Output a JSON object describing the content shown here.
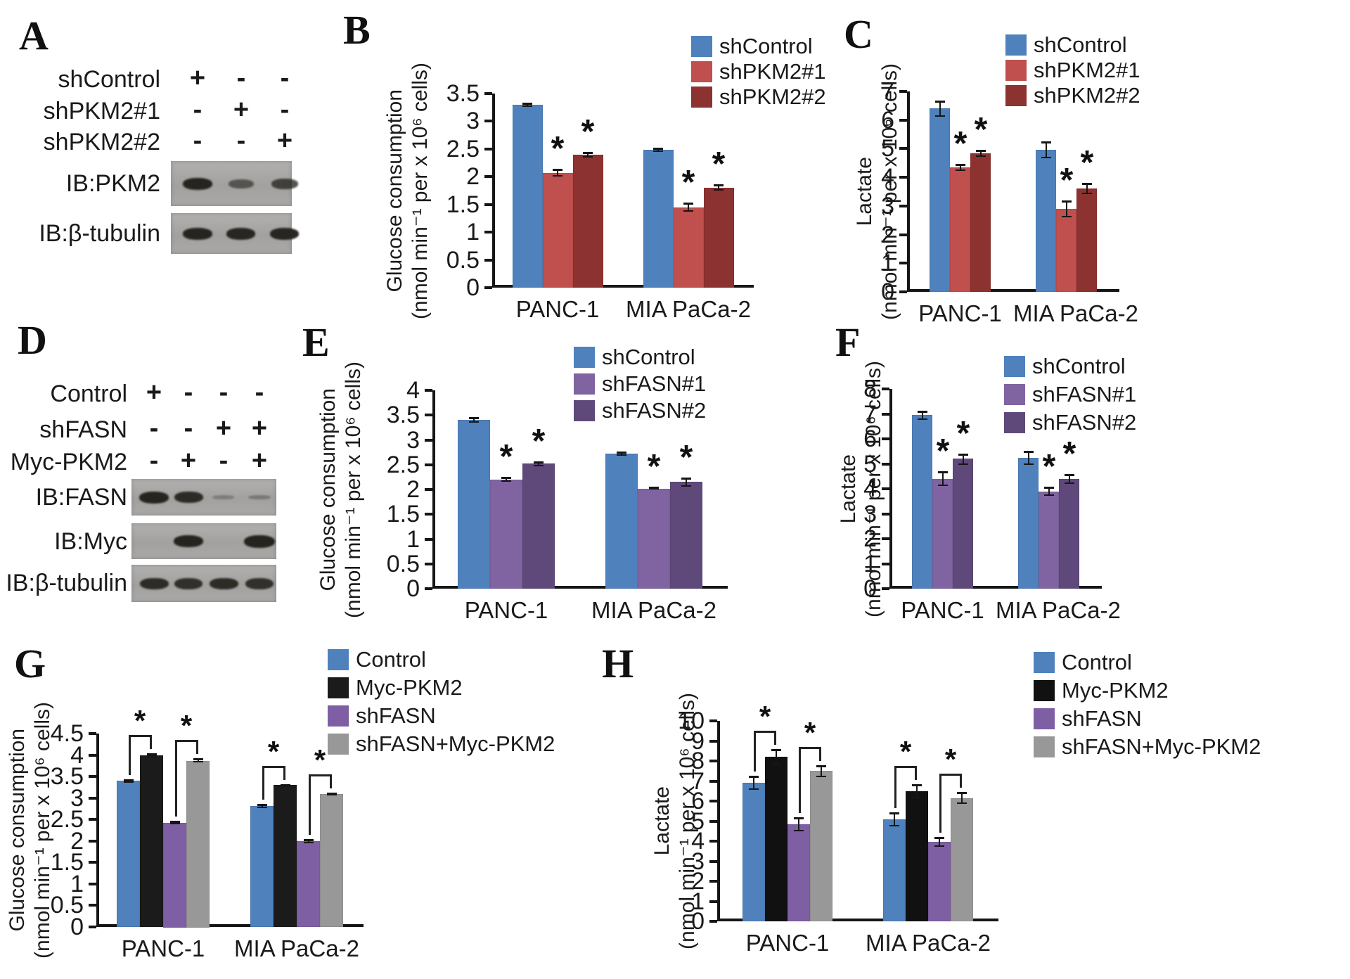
{
  "sig_symbol": "*",
  "blot_panels": [
    {
      "letter": "A",
      "condition_rows": [
        {
          "label": "shControl",
          "symbols": [
            "+",
            "-",
            "-"
          ]
        },
        {
          "label": "shPKM2#1",
          "symbols": [
            "-",
            "+",
            "-"
          ]
        },
        {
          "label": "shPKM2#2",
          "symbols": [
            "-",
            "-",
            "+"
          ]
        }
      ],
      "membranes": [
        {
          "label": "IB:PKM2",
          "bands": [
            1.0,
            0.5,
            0.7
          ]
        },
        {
          "label": "IB:β-tubulin",
          "bands": [
            1.0,
            0.95,
            0.95
          ]
        }
      ]
    },
    {
      "letter": "D",
      "condition_rows": [
        {
          "label": "Control",
          "symbols": [
            "+",
            "-",
            "-",
            "-"
          ]
        },
        {
          "label": "shFASN",
          "symbols": [
            "-",
            "-",
            "+",
            "+"
          ]
        },
        {
          "label": "Myc-PKM2",
          "symbols": [
            "-",
            "+",
            "-",
            "+"
          ]
        }
      ],
      "membranes": [
        {
          "label": "IB:FASN",
          "bands": [
            1.0,
            0.9,
            0.1,
            0.15
          ]
        },
        {
          "label": "IB:Myc",
          "bands": [
            0,
            1.0,
            0,
            1.15
          ]
        },
        {
          "label": "IB:β-tubulin",
          "bands": [
            0.9,
            0.85,
            0.9,
            0.85
          ]
        }
      ]
    }
  ],
  "chart_data": [
    {
      "id": "B",
      "letter": "B",
      "type": "bar",
      "ylabel": "Glucose consumption",
      "yunits": "(nmol min⁻¹ per x 10⁶ cells)",
      "categories": [
        "PANC-1",
        "MIA PaCa-2"
      ],
      "ylim": [
        0,
        3.5
      ],
      "ytick_step": 0.5,
      "legend_position": "top-right",
      "grid": false,
      "series": [
        {
          "name": "shControl",
          "color": "#4f81bd",
          "values": [
            3.3,
            2.48
          ],
          "errors": [
            0.04,
            0.04
          ],
          "sig": [
            false,
            false
          ]
        },
        {
          "name": "shPKM2#1",
          "color": "#c0504d",
          "values": [
            2.07,
            1.45
          ],
          "errors": [
            0.07,
            0.08
          ],
          "sig": [
            true,
            true
          ]
        },
        {
          "name": "shPKM2#2",
          "color": "#8c3230",
          "values": [
            2.4,
            1.8
          ],
          "errors": [
            0.05,
            0.06
          ],
          "sig": [
            true,
            true
          ]
        }
      ]
    },
    {
      "id": "C",
      "letter": "C",
      "type": "bar",
      "ylabel": "Lactate",
      "yunits": "(nmol min⁻¹ per x 10⁶ cells)",
      "categories": [
        "PANC-1",
        "MIA PaCa-2"
      ],
      "ylim": [
        0,
        7
      ],
      "ytick_step": 1,
      "legend_position": "top-right",
      "grid": false,
      "series": [
        {
          "name": "shControl",
          "color": "#4f81bd",
          "values": [
            6.4,
            4.95
          ],
          "errors": [
            0.28,
            0.3
          ],
          "sig": [
            false,
            false
          ]
        },
        {
          "name": "shPKM2#1",
          "color": "#c0504d",
          "values": [
            4.35,
            2.9
          ],
          "errors": [
            0.12,
            0.3
          ],
          "sig": [
            true,
            true
          ]
        },
        {
          "name": "shPKM2#2",
          "color": "#8c3230",
          "values": [
            4.85,
            3.6
          ],
          "errors": [
            0.12,
            0.2
          ],
          "sig": [
            true,
            true
          ]
        }
      ]
    },
    {
      "id": "E",
      "letter": "E",
      "type": "bar",
      "ylabel": "Glucose consumption",
      "yunits": "(nmol min⁻¹ per x 10⁶ cells)",
      "categories": [
        "PANC-1",
        "MIA PaCa-2"
      ],
      "ylim": [
        0,
        4
      ],
      "ytick_step": 0.5,
      "legend_position": "top-right",
      "grid": false,
      "series": [
        {
          "name": "shControl",
          "color": "#4f81bd",
          "values": [
            3.4,
            2.72
          ],
          "errors": [
            0.06,
            0.04
          ],
          "sig": [
            false,
            false
          ]
        },
        {
          "name": "shFASN#1",
          "color": "#8064a2",
          "values": [
            2.2,
            2.02
          ],
          "errors": [
            0.05,
            0.03
          ],
          "sig": [
            true,
            true
          ]
        },
        {
          "name": "shFASN#2",
          "color": "#5f497a",
          "values": [
            2.52,
            2.15
          ],
          "errors": [
            0.05,
            0.09
          ],
          "sig": [
            true,
            true
          ]
        }
      ]
    },
    {
      "id": "F",
      "letter": "F",
      "type": "bar",
      "ylabel": "Lactate",
      "yunits": "(nmol min⁻¹ per x 10⁶ cells)",
      "categories": [
        "PANC-1",
        "MIA PaCa-2"
      ],
      "ylim": [
        0,
        8
      ],
      "ytick_step": 1,
      "legend_position": "top-right",
      "grid": false,
      "series": [
        {
          "name": "shControl",
          "color": "#4f81bd",
          "values": [
            6.95,
            5.25
          ],
          "errors": [
            0.18,
            0.28
          ],
          "sig": [
            false,
            false
          ]
        },
        {
          "name": "shFASN#1",
          "color": "#8064a2",
          "values": [
            4.4,
            3.9
          ],
          "errors": [
            0.3,
            0.18
          ],
          "sig": [
            true,
            true
          ]
        },
        {
          "name": "shFASN#2",
          "color": "#5f497a",
          "values": [
            5.2,
            4.4
          ],
          "errors": [
            0.22,
            0.2
          ],
          "sig": [
            true,
            true
          ]
        }
      ]
    },
    {
      "id": "G",
      "letter": "G",
      "type": "bar",
      "ylabel": "Glucose consumption",
      "yunits": "(nmol min⁻¹ per x 10⁶ cells)",
      "categories": [
        "PANC-1",
        "MIA PaCa-2"
      ],
      "ylim": [
        0,
        4.5
      ],
      "ytick_step": 0.5,
      "legend_position": "top-right",
      "grid": false,
      "series": [
        {
          "name": "Control",
          "color": "#4f81bd",
          "values": [
            3.4,
            2.82
          ],
          "errors": [
            0.04,
            0.05
          ],
          "sig": [
            false,
            false
          ]
        },
        {
          "name": "Myc-PKM2",
          "color": "#1b1b1b",
          "values": [
            4.0,
            3.3
          ],
          "errors": [
            0.04,
            0.03
          ],
          "sig": [
            false,
            false
          ]
        },
        {
          "name": "shFASN",
          "color": "#7e5fa4",
          "values": [
            2.43,
            2.0
          ],
          "errors": [
            0.04,
            0.05
          ],
          "sig": [
            false,
            false
          ]
        },
        {
          "name": "shFASN+Myc-PKM2",
          "color": "#989898",
          "values": [
            3.87,
            3.1
          ],
          "errors": [
            0.05,
            0.03
          ],
          "sig": [
            false,
            false
          ]
        }
      ],
      "sig_brackets": [
        {
          "category": 0,
          "from": 0,
          "to": 1
        },
        {
          "category": 0,
          "from": 2,
          "to": 3
        },
        {
          "category": 1,
          "from": 0,
          "to": 1
        },
        {
          "category": 1,
          "from": 2,
          "to": 3
        }
      ]
    },
    {
      "id": "H",
      "letter": "H",
      "type": "bar",
      "ylabel": "Lactate",
      "yunits": "(nmol min⁻¹ per x 10⁶ cells)",
      "categories": [
        "PANC-1",
        "MIA PaCa-2"
      ],
      "ylim": [
        0,
        10
      ],
      "ytick_step": 1,
      "legend_position": "top-right",
      "grid": false,
      "series": [
        {
          "name": "Control",
          "color": "#4f81bd",
          "values": [
            6.9,
            5.1
          ],
          "errors": [
            0.35,
            0.35
          ],
          "sig": [
            false,
            false
          ]
        },
        {
          "name": "Myc-PKM2",
          "color": "#111111",
          "values": [
            8.2,
            6.5
          ],
          "errors": [
            0.4,
            0.35
          ],
          "sig": [
            false,
            false
          ]
        },
        {
          "name": "shFASN",
          "color": "#7e5fa4",
          "values": [
            4.85,
            3.95
          ],
          "errors": [
            0.35,
            0.25
          ],
          "sig": [
            false,
            false
          ]
        },
        {
          "name": "shFASN+Myc-PKM2",
          "color": "#989898",
          "values": [
            7.5,
            6.15
          ],
          "errors": [
            0.3,
            0.3
          ],
          "sig": [
            false,
            false
          ]
        }
      ],
      "sig_brackets": [
        {
          "category": 0,
          "from": 0,
          "to": 1
        },
        {
          "category": 0,
          "from": 2,
          "to": 3
        },
        {
          "category": 1,
          "from": 0,
          "to": 1
        },
        {
          "category": 1,
          "from": 2,
          "to": 3
        }
      ]
    }
  ]
}
